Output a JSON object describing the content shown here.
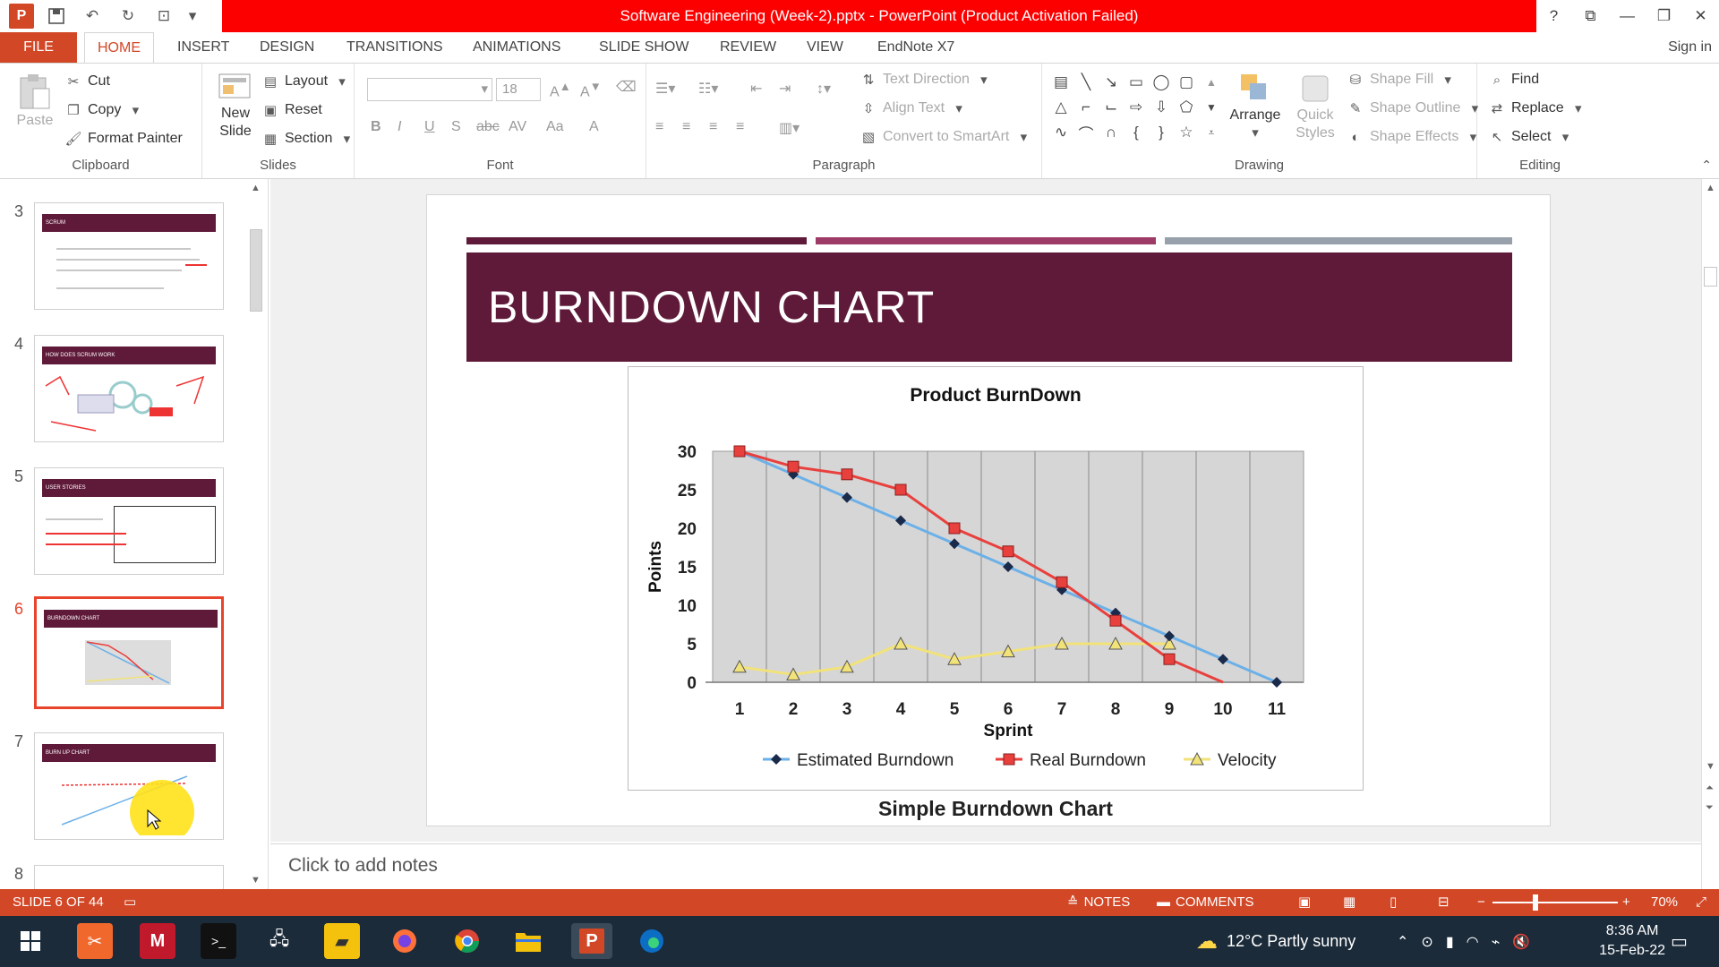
{
  "window": {
    "title": "Software Engineering (Week-2).pptx - PowerPoint (Product Activation Failed)"
  },
  "tabs": [
    "FILE",
    "HOME",
    "INSERT",
    "DESIGN",
    "TRANSITIONS",
    "ANIMATIONS",
    "SLIDE SHOW",
    "REVIEW",
    "VIEW",
    "EndNote X7"
  ],
  "signin": "Sign in",
  "ribbon": {
    "clipboard": {
      "label": "Clipboard",
      "paste": "Paste",
      "cut": "Cut",
      "copy": "Copy",
      "format_painter": "Format Painter"
    },
    "slides": {
      "label": "Slides",
      "new_slide_line1": "New",
      "new_slide_line2": "Slide",
      "layout": "Layout",
      "reset": "Reset",
      "section": "Section"
    },
    "font": {
      "label": "Font",
      "size": "18",
      "bold": "B",
      "italic": "I",
      "underline": "U",
      "strike": "S",
      "abc": "abc",
      "spacing": "AV",
      "case": "Aa",
      "color": "A"
    },
    "paragraph": {
      "label": "Paragraph",
      "text_direction": "Text Direction",
      "align_text": "Align Text",
      "convert": "Convert to SmartArt"
    },
    "drawing": {
      "label": "Drawing",
      "arrange": "Arrange",
      "quick_line1": "Quick",
      "quick_line2": "Styles",
      "shape_fill": "Shape Fill",
      "shape_outline": "Shape Outline",
      "shape_effects": "Shape Effects"
    },
    "editing": {
      "label": "Editing",
      "find": "Find",
      "replace": "Replace",
      "select": "Select"
    }
  },
  "thumbnails": [
    {
      "num": "3",
      "title": "SCRUM",
      "selected": false
    },
    {
      "num": "4",
      "title": "HOW DOES SCRUM WORK",
      "selected": false
    },
    {
      "num": "5",
      "title": "USER STORIES",
      "selected": false
    },
    {
      "num": "6",
      "title": "BURNDOWN CHART",
      "selected": true
    },
    {
      "num": "7",
      "title": "BURN UP CHART",
      "selected": false
    },
    {
      "num": "8",
      "title": "",
      "selected": false
    }
  ],
  "slide": {
    "title": "BURNDOWN CHART",
    "caption": "Simple Burndown Chart"
  },
  "chart_data": {
    "type": "line",
    "title": "Product BurnDown",
    "xlabel": "Sprint",
    "ylabel": "Points",
    "categories": [
      "1",
      "2",
      "3",
      "4",
      "5",
      "6",
      "7",
      "8",
      "9",
      "10",
      "11"
    ],
    "ylim": [
      0,
      30
    ],
    "yticks": [
      "0",
      "5",
      "10",
      "15",
      "20",
      "25",
      "30"
    ],
    "grid": true,
    "legend": "bottom",
    "series": [
      {
        "name": "Estimated Burndown",
        "color": "#6cb0e8",
        "marker": "diamond",
        "values": [
          30,
          27,
          24,
          21,
          18,
          15,
          12,
          9,
          6,
          3,
          0
        ]
      },
      {
        "name": "Real Burndown",
        "color": "#e8403d",
        "marker": "square",
        "values": [
          30,
          28,
          27,
          25,
          20,
          17,
          13,
          8,
          3,
          0,
          null
        ]
      },
      {
        "name": "Velocity",
        "color": "#f2e27a",
        "marker": "triangle",
        "values": [
          2,
          1,
          2,
          5,
          3,
          4,
          5,
          5,
          5,
          null,
          null
        ]
      }
    ]
  },
  "notes": {
    "placeholder": "Click to add notes"
  },
  "status": {
    "slide": "SLIDE 6 OF 44",
    "notes": "NOTES",
    "comments": "COMMENTS",
    "zoom": "70%"
  },
  "taskbar": {
    "weather": "12°C  Partly sunny",
    "time": "8:36 AM",
    "date": "15-Feb-22"
  },
  "colors": {
    "accent": "#d24726",
    "titlebar": "#fc0000",
    "banner": "#5f1a3a"
  }
}
